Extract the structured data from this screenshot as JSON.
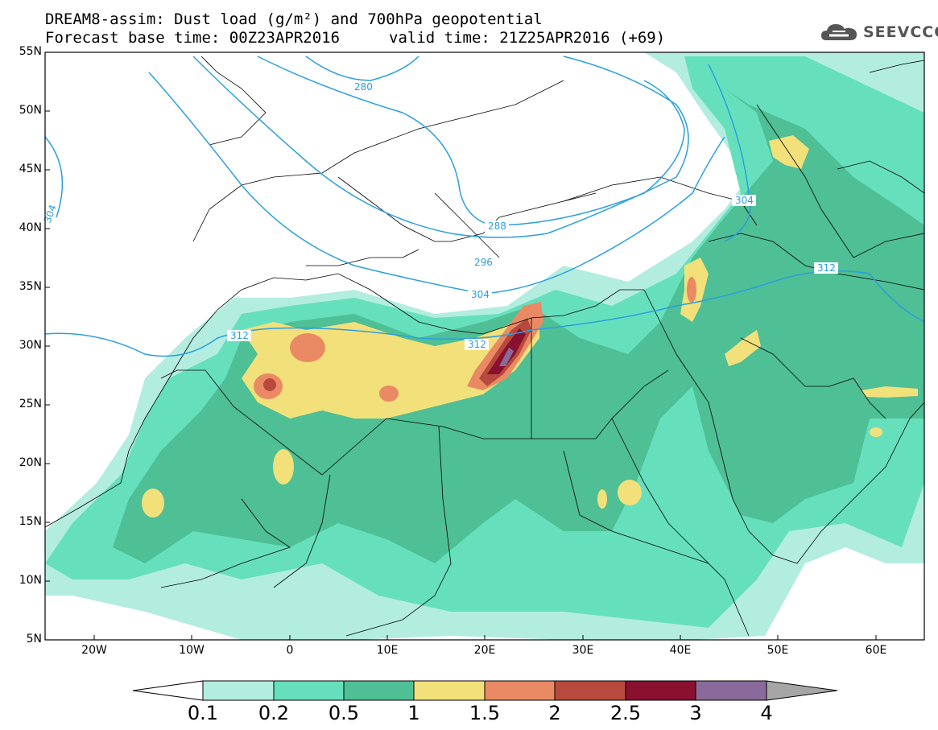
{
  "header": {
    "title_line1": "DREAM8-assim: Dust load (g/m²) and 700hPa geopotential",
    "title_line2": "Forecast base time: 00Z23APR2016",
    "valid_time": "valid time: 21Z25APR2016 (+69)",
    "logo_text": "SEEVCCC"
  },
  "map": {
    "lat_labels": [
      "55N",
      "50N",
      "45N",
      "40N",
      "35N",
      "30N",
      "25N",
      "20N",
      "15N",
      "10N",
      "5N"
    ],
    "lon_labels": [
      "20W",
      "10W",
      "0",
      "10E",
      "20E",
      "30E",
      "40E",
      "50E",
      "60E"
    ],
    "contour_labels": [
      "280",
      "288",
      "296",
      "304",
      "312",
      "304",
      "312",
      "312",
      "304",
      "312"
    ]
  },
  "colorbar": {
    "labels": [
      "0.1",
      "0.2",
      "0.5",
      "1",
      "1.5",
      "2",
      "2.5",
      "3",
      "4"
    ],
    "colors": [
      "#b3ede0",
      "#66e0bc",
      "#4fbf95",
      "#f2e07a",
      "#e98a64",
      "#b74a3c",
      "#8a1030",
      "#8a6a9a",
      "#a6a6a6"
    ]
  },
  "colors": {
    "land_base": "#ffffff",
    "contour_line": "#2a9fdf",
    "border_line": "#000000"
  }
}
